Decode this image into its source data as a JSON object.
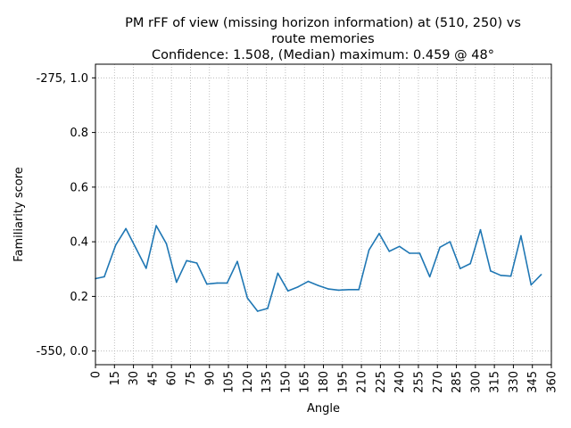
{
  "chart_data": {
    "type": "line",
    "title_lines": [
      "PM rFF of view (missing horizon information) at (510, 250) vs",
      "route memories",
      "Confidence: 1.508, (Median) maximum: 0.459 @ 48°"
    ],
    "xlabel": "Angle",
    "ylabel": "Familiarity score",
    "xlim": [
      0,
      360
    ],
    "ylim": [
      -0.05,
      1.05
    ],
    "grid": true,
    "x_ticks": [
      0,
      15,
      30,
      45,
      60,
      75,
      90,
      105,
      120,
      135,
      150,
      165,
      180,
      195,
      210,
      225,
      240,
      255,
      270,
      285,
      300,
      315,
      330,
      345,
      360
    ],
    "y_ticks": [
      {
        "value": 0.0,
        "label": "-550, 0.0"
      },
      {
        "value": 0.2,
        "label": "0.2"
      },
      {
        "value": 0.4,
        "label": "0.4"
      },
      {
        "value": 0.6,
        "label": "0.6"
      },
      {
        "value": 0.8,
        "label": "0.8"
      },
      {
        "value": 1.0,
        "label": "-275, 1.0"
      }
    ],
    "series": [
      {
        "color": "#1f77b4",
        "x": [
          0,
          7,
          16,
          24,
          32,
          40,
          48,
          56,
          64,
          72,
          80,
          88,
          96,
          104,
          112,
          120,
          128,
          136,
          144,
          152,
          160,
          168,
          176,
          184,
          192,
          200,
          208,
          216,
          224,
          232,
          240,
          248,
          256,
          264,
          272,
          280,
          288,
          296,
          304,
          312,
          320,
          328,
          336,
          344,
          352
        ],
        "y": [
          0.265,
          0.272,
          0.388,
          0.448,
          0.376,
          0.303,
          0.459,
          0.393,
          0.252,
          0.331,
          0.322,
          0.245,
          0.249,
          0.249,
          0.328,
          0.194,
          0.146,
          0.156,
          0.285,
          0.22,
          0.235,
          0.255,
          0.24,
          0.227,
          0.223,
          0.225,
          0.225,
          0.37,
          0.43,
          0.365,
          0.383,
          0.358,
          0.358,
          0.272,
          0.38,
          0.4,
          0.302,
          0.32,
          0.444,
          0.293,
          0.277,
          0.274,
          0.422,
          0.242,
          0.28
        ]
      }
    ]
  }
}
